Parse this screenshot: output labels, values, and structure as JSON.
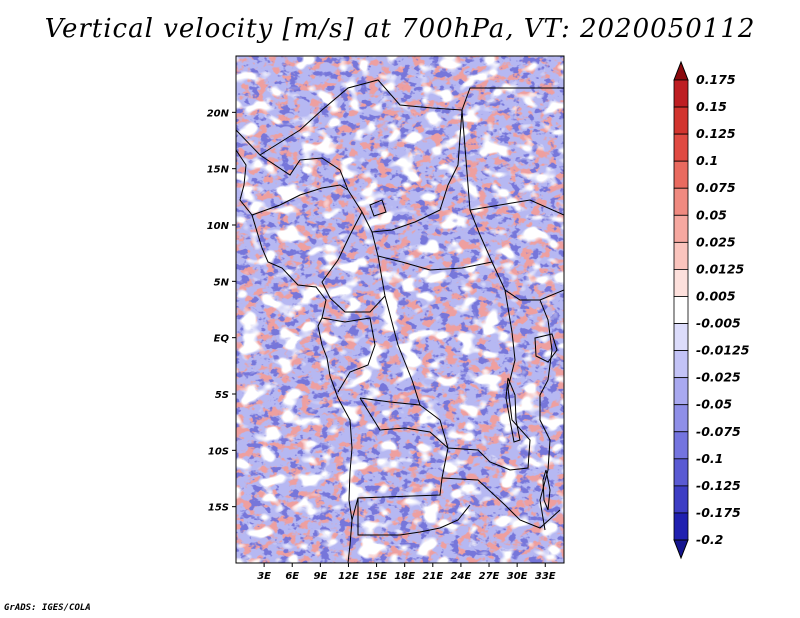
{
  "title": "Vertical velocity [m/s] at 700hPa, VT: 2020050112",
  "footer": "GrADS: IGES/COLA",
  "map": {
    "lon_range": [
      0,
      35
    ],
    "lat_range": [
      -20,
      25
    ],
    "lat_labels": [
      {
        "lat": 20,
        "label": "20N"
      },
      {
        "lat": 15,
        "label": "15N"
      },
      {
        "lat": 10,
        "label": "10N"
      },
      {
        "lat": 5,
        "label": "5N"
      },
      {
        "lat": 0,
        "label": "EQ"
      },
      {
        "lat": -5,
        "label": "5S"
      },
      {
        "lat": -10,
        "label": "10S"
      },
      {
        "lat": -15,
        "label": "15S"
      }
    ],
    "lon_labels": [
      {
        "lon": 3,
        "label": "3E"
      },
      {
        "lon": 6,
        "label": "6E"
      },
      {
        "lon": 9,
        "label": "9E"
      },
      {
        "lon": 12,
        "label": "12E"
      },
      {
        "lon": 15,
        "label": "15E"
      },
      {
        "lon": 18,
        "label": "18E"
      },
      {
        "lon": 21,
        "label": "21E"
      },
      {
        "lon": 24,
        "label": "24E"
      },
      {
        "lon": 27,
        "label": "27E"
      },
      {
        "lon": 30,
        "label": "30E"
      },
      {
        "lon": 33,
        "label": "33E"
      }
    ]
  },
  "colorbar": {
    "levels": [
      {
        "label": "0.175",
        "color": "#a50f15"
      },
      {
        "label": "0.15",
        "color": "#be1e22"
      },
      {
        "label": "0.125",
        "color": "#d2342e"
      },
      {
        "label": "0.1",
        "color": "#e04a42"
      },
      {
        "label": "0.075",
        "color": "#e96a5f"
      },
      {
        "label": "0.05",
        "color": "#f08a80"
      },
      {
        "label": "0.025",
        "color": "#f6a8a0"
      },
      {
        "label": "0.0125",
        "color": "#fac4bd"
      },
      {
        "label": "0.005",
        "color": "#fde0dc"
      },
      {
        "label": "-0.005",
        "color": "#ffffff"
      },
      {
        "label": "-0.0125",
        "color": "#dcdcfb"
      },
      {
        "label": "-0.025",
        "color": "#c3c3f6"
      },
      {
        "label": "-0.05",
        "color": "#a9a9f0"
      },
      {
        "label": "-0.075",
        "color": "#8f8fe8"
      },
      {
        "label": "-0.1",
        "color": "#7474df"
      },
      {
        "label": "-0.125",
        "color": "#5a5ad3"
      },
      {
        "label": "-0.175",
        "color": "#3d3dc4"
      },
      {
        "label": "-0.2",
        "color": "#2020b0"
      }
    ],
    "top_color": "#8b0a0e",
    "bottom_color": "#15158f"
  }
}
